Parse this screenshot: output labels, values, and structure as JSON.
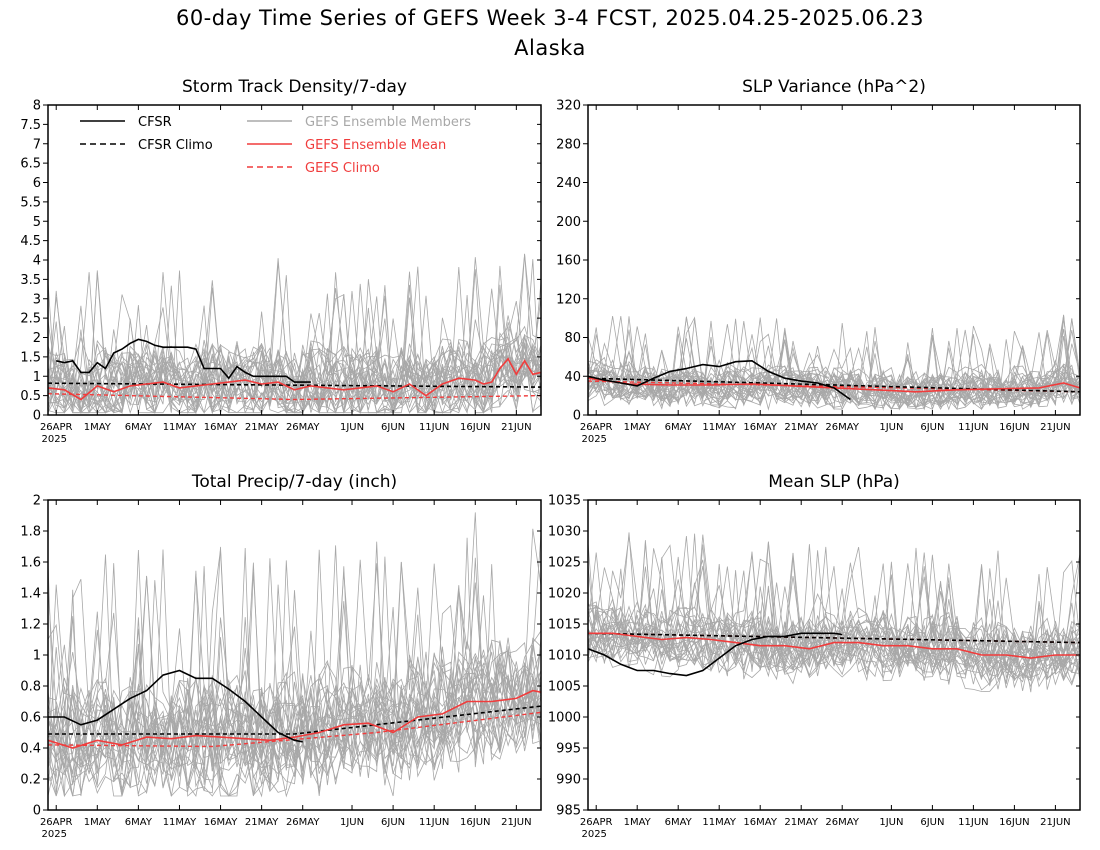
{
  "figure": {
    "title_line1": "60-day Time Series of GEFS Week 3-4 FCST, 2025.04.25-2025.06.23",
    "title_line2": "Alaska"
  },
  "colors": {
    "cfsr": "#000000",
    "ensemble_members": "#a8a8a8",
    "ensemble_mean": "#f03c3c",
    "gefs_climo": "#f03c3c",
    "axes": "#000000",
    "legend_member_text": "#a8a8a8",
    "legend_red_text": "#f03c3c"
  },
  "legend": [
    {
      "label": "CFSR",
      "style": "solid",
      "color": "#000000"
    },
    {
      "label": "CFSR Climo",
      "style": "dashed",
      "color": "#000000"
    },
    {
      "label": "GEFS Ensemble Members",
      "style": "solid",
      "color": "#a8a8a8"
    },
    {
      "label": "GEFS Ensemble Mean",
      "style": "solid",
      "color": "#f03c3c"
    },
    {
      "label": "GEFS Climo",
      "style": "dashed",
      "color": "#f03c3c"
    }
  ],
  "x_tick_labels": [
    "26APR",
    "1MAY",
    "6MAY",
    "11MAY",
    "16MAY",
    "21MAY",
    "26MAY",
    "1JUN",
    "6JUN",
    "11JUN",
    "16JUN",
    "21JUN"
  ],
  "x_year_label": "2025",
  "chart_data": [
    {
      "type": "line",
      "title": "Storm Track Density/7-day",
      "ylim": [
        0,
        8
      ],
      "yticks": [
        "0",
        "0.5",
        "1",
        "1.5",
        "2",
        "2.5",
        "3",
        "3.5",
        "4",
        "4.5",
        "5",
        "5.5",
        "6",
        "6.5",
        "7",
        "7.5",
        "8"
      ],
      "legend_shown": true,
      "legend_position": "top-left",
      "ensemble_members": {
        "count": 30,
        "typical_range": [
          0.1,
          2.6
        ],
        "spikes": "up to about 4.3 in mid-June"
      },
      "series": [
        {
          "name": "CFSR",
          "x": [
            1,
            2,
            3,
            4,
            5,
            6,
            7,
            8,
            9,
            10,
            11,
            12,
            13,
            14,
            15,
            16,
            17,
            18,
            19,
            20,
            21,
            22,
            23,
            24,
            25,
            26,
            27,
            28,
            29,
            30,
            31,
            32
          ],
          "values": [
            1.4,
            1.35,
            1.4,
            1.1,
            1.1,
            1.35,
            1.2,
            1.6,
            1.7,
            1.85,
            1.95,
            1.9,
            1.8,
            1.75,
            1.75,
            1.75,
            1.75,
            1.7,
            1.2,
            1.2,
            1.2,
            0.95,
            1.25,
            1.1,
            1.0,
            1.0,
            1.0,
            1.0,
            1.0,
            0.85,
            0.85,
            0.85
          ]
        },
        {
          "name": "CFSR Climo",
          "x": [
            0,
            60
          ],
          "values": [
            0.82,
            0.72
          ]
        },
        {
          "name": "GEFS Ensemble Mean",
          "x": [
            0,
            2,
            4,
            6,
            8,
            10,
            12,
            14,
            16,
            18,
            20,
            22,
            24,
            26,
            28,
            30,
            32,
            34,
            36,
            38,
            40,
            42,
            44,
            46,
            48,
            50,
            52,
            53,
            54,
            55,
            56,
            57,
            58,
            59,
            60
          ],
          "values": [
            0.7,
            0.65,
            0.4,
            0.75,
            0.6,
            0.75,
            0.8,
            0.85,
            0.7,
            0.75,
            0.8,
            0.85,
            0.9,
            0.8,
            0.85,
            0.65,
            0.75,
            0.7,
            0.65,
            0.7,
            0.75,
            0.6,
            0.8,
            0.5,
            0.8,
            0.95,
            0.9,
            0.8,
            0.85,
            1.2,
            1.45,
            1.05,
            1.4,
            1.05,
            1.1
          ]
        },
        {
          "name": "GEFS Climo",
          "x": [
            0,
            30,
            60
          ],
          "values": [
            0.55,
            0.4,
            0.5
          ]
        }
      ]
    },
    {
      "type": "line",
      "title": "SLP Variance (hPa^2)",
      "ylim": [
        0,
        320
      ],
      "yticks": [
        "0",
        "40",
        "80",
        "120",
        "160",
        "200",
        "240",
        "280",
        "320"
      ],
      "legend_shown": false,
      "ensemble_members": {
        "count": 30,
        "typical_range": [
          10,
          65
        ],
        "spikes": "up to about 90 at the start"
      },
      "series": [
        {
          "name": "CFSR",
          "x": [
            0,
            2,
            4,
            6,
            8,
            10,
            12,
            14,
            16,
            18,
            20,
            22,
            24,
            26,
            28,
            30,
            32
          ],
          "values": [
            40,
            36,
            33,
            30,
            38,
            45,
            48,
            52,
            50,
            55,
            56,
            45,
            38,
            35,
            33,
            28,
            16
          ]
        },
        {
          "name": "CFSR Climo",
          "x": [
            0,
            60
          ],
          "values": [
            38,
            24
          ]
        },
        {
          "name": "GEFS Ensemble Mean",
          "x": [
            0,
            5,
            10,
            15,
            20,
            25,
            30,
            35,
            40,
            45,
            50,
            55,
            58,
            60
          ],
          "values": [
            38,
            32,
            31,
            31,
            32,
            30,
            28,
            26,
            24,
            26,
            27,
            28,
            33,
            28
          ]
        },
        {
          "name": "GEFS Climo",
          "x": [
            0,
            60
          ],
          "values": [
            35,
            24
          ]
        }
      ]
    },
    {
      "type": "line",
      "title": "Total Precip/7-day (inch)",
      "ylim": [
        0,
        2
      ],
      "yticks": [
        "0",
        "0.2",
        "0.4",
        "0.6",
        "0.8",
        "1",
        "1.2",
        "1.4",
        "1.6",
        "1.8",
        "2"
      ],
      "legend_shown": false,
      "ensemble_members": {
        "count": 30,
        "typical_range": [
          0.15,
          1.1
        ],
        "spikes": "up to about 1.1 late June"
      },
      "series": [
        {
          "name": "CFSR",
          "x": [
            0,
            2,
            4,
            6,
            8,
            10,
            12,
            14,
            16,
            18,
            20,
            22,
            24,
            26,
            28,
            30,
            31
          ],
          "values": [
            0.6,
            0.6,
            0.55,
            0.58,
            0.65,
            0.72,
            0.77,
            0.87,
            0.9,
            0.85,
            0.85,
            0.78,
            0.7,
            0.6,
            0.5,
            0.45,
            0.44
          ]
        },
        {
          "name": "CFSR Climo",
          "x": [
            0,
            30,
            60
          ],
          "values": [
            0.49,
            0.49,
            0.67
          ]
        },
        {
          "name": "GEFS Ensemble Mean",
          "x": [
            0,
            3,
            6,
            9,
            12,
            15,
            18,
            21,
            24,
            27,
            30,
            33,
            36,
            39,
            42,
            45,
            48,
            51,
            54,
            57,
            59,
            60
          ],
          "values": [
            0.45,
            0.4,
            0.45,
            0.42,
            0.47,
            0.46,
            0.48,
            0.47,
            0.46,
            0.45,
            0.47,
            0.5,
            0.55,
            0.56,
            0.5,
            0.6,
            0.62,
            0.7,
            0.7,
            0.72,
            0.77,
            0.76
          ]
        },
        {
          "name": "GEFS Climo",
          "x": [
            0,
            20,
            40,
            60
          ],
          "values": [
            0.42,
            0.41,
            0.5,
            0.63
          ]
        }
      ]
    },
    {
      "type": "line",
      "title": "Mean SLP (hPa)",
      "ylim": [
        985,
        1035
      ],
      "yticks": [
        "985",
        "990",
        "995",
        "1000",
        "1005",
        "1010",
        "1015",
        "1020",
        "1025",
        "1030",
        "1035"
      ],
      "legend_shown": false,
      "ensemble_members": {
        "count": 30,
        "typical_range": [
          1005,
          1018
        ],
        "spikes": "down to about 1000 and up to about 1023 early May"
      },
      "series": [
        {
          "name": "CFSR",
          "x": [
            0,
            2,
            4,
            6,
            8,
            10,
            12,
            14,
            16,
            18,
            20,
            22,
            24,
            26,
            28,
            30,
            31
          ],
          "values": [
            1011,
            1010,
            1008.5,
            1007.5,
            1007.5,
            1007,
            1006.7,
            1007.5,
            1009.5,
            1011.5,
            1012.5,
            1013,
            1013,
            1013.5,
            1013.5,
            1013.5,
            1013.3
          ]
        },
        {
          "name": "CFSR Climo",
          "x": [
            0,
            60
          ],
          "values": [
            1013.5,
            1012
          ]
        },
        {
          "name": "GEFS Ensemble Mean",
          "x": [
            0,
            3,
            6,
            9,
            12,
            15,
            18,
            21,
            24,
            27,
            30,
            33,
            36,
            39,
            42,
            45,
            48,
            51,
            54,
            57,
            60
          ],
          "values": [
            1013.5,
            1013.5,
            1013,
            1012.5,
            1012.8,
            1012.5,
            1012,
            1011.5,
            1011.5,
            1011,
            1012,
            1012,
            1011.5,
            1011.5,
            1011,
            1011,
            1010,
            1010,
            1009.5,
            1010,
            1010
          ]
        },
        {
          "name": "GEFS Climo",
          "x": [
            0,
            60
          ],
          "values": [
            1013.5,
            1012
          ]
        }
      ]
    }
  ]
}
